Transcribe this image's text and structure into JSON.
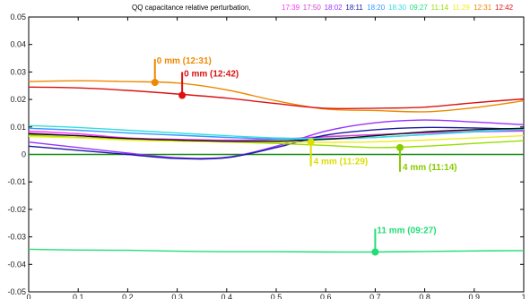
{
  "chart_data": {
    "type": "line",
    "title": "QQ capacitance relative perturbation,",
    "legend_placement": "top",
    "grid": false,
    "xlim": [
      0,
      1
    ],
    "ylim": [
      -0.05,
      0.05
    ],
    "xticks": [
      0,
      0.1,
      0.2,
      0.3,
      0.4,
      0.5,
      0.6,
      0.7,
      0.8,
      0.9,
      1
    ],
    "xtick_labels": [
      "0",
      "0.1",
      "0.2",
      "0.3",
      "0.4",
      "0.5",
      "0.6",
      "0.7",
      "0.8",
      "0.9",
      "1"
    ],
    "yticks": [
      0.05,
      0.04,
      0.03,
      0.02,
      0.01,
      0,
      -0.01,
      -0.02,
      -0.03,
      -0.04,
      -0.05
    ],
    "ytick_labels": [
      "0.05",
      "0.04",
      "0.03",
      "0.02",
      "0.01",
      "0",
      "-0.01",
      "-0.02",
      "-0.03",
      "-0.04",
      "-0.05"
    ],
    "x": [
      0,
      0.1,
      0.2,
      0.3,
      0.4,
      0.5,
      0.6,
      0.7,
      0.8,
      0.9,
      1
    ],
    "series": [
      {
        "name": "17:39",
        "color": "#ff33ff",
        "values": [
          0.0085,
          0.0075,
          0.006,
          0.0055,
          0.0052,
          0.0055,
          0.0065,
          0.0072,
          0.0078,
          0.0082,
          0.0085
        ]
      },
      {
        "name": "17:50",
        "color": "#cc44cc",
        "values": [
          0.0078,
          0.0068,
          0.0056,
          0.0052,
          0.005,
          0.0054,
          0.0064,
          0.0072,
          0.0079,
          0.0084,
          0.0087
        ]
      },
      {
        "name": "18:02",
        "color": "#9933ff",
        "values": [
          0.0045,
          0.0025,
          0.0005,
          -0.0012,
          -0.001,
          0.003,
          0.0085,
          0.0115,
          0.0125,
          0.0118,
          0.0108
        ]
      },
      {
        "name": "18:11",
        "color": "#1a1aa0",
        "values": [
          0.003,
          0.0015,
          0.0,
          -0.0015,
          -0.0012,
          0.0025,
          0.007,
          0.009,
          0.0098,
          0.0096,
          0.0092
        ]
      },
      {
        "name": "18:20",
        "color": "#3399ff",
        "values": [
          0.0095,
          0.0088,
          0.0078,
          0.007,
          0.0062,
          0.0056,
          0.0056,
          0.0062,
          0.0072,
          0.0082,
          0.009
        ]
      },
      {
        "name": "18:30",
        "color": "#33dddd",
        "values": [
          0.0105,
          0.0098,
          0.0088,
          0.0078,
          0.0068,
          0.006,
          0.0058,
          0.0062,
          0.0072,
          0.0083,
          0.0092
        ]
      },
      {
        "name": "09:27",
        "color": "#22dd77",
        "values": [
          -0.0345,
          -0.0348,
          -0.0349,
          -0.0352,
          -0.0354,
          -0.0354,
          -0.0355,
          -0.0355,
          -0.0353,
          -0.0351,
          -0.035
        ]
      },
      {
        "name": "11:14",
        "color": "#99dd00",
        "values": [
          0.007,
          0.0062,
          0.0055,
          0.005,
          0.0045,
          0.004,
          0.0033,
          0.0025,
          0.003,
          0.004,
          0.005
        ]
      },
      {
        "name": "11:29",
        "color": "#eeee22",
        "values": [
          0.0065,
          0.006,
          0.0052,
          0.0048,
          0.0045,
          0.0045,
          0.0044,
          0.0046,
          0.0052,
          0.006,
          0.0068
        ]
      },
      {
        "name": "12:31",
        "color": "#ee8800",
        "values": [
          0.0265,
          0.0268,
          0.0265,
          0.026,
          0.0235,
          0.0195,
          0.0165,
          0.016,
          0.0155,
          0.017,
          0.0195
        ]
      },
      {
        "name": "12:42",
        "color": "#dd1111",
        "values": [
          0.0245,
          0.0242,
          0.0233,
          0.022,
          0.0205,
          0.0185,
          0.0168,
          0.0168,
          0.0172,
          0.0188,
          0.0202
        ]
      },
      {
        "name": "",
        "color": "#111111",
        "values": [
          0.0075,
          0.0068,
          0.0058,
          0.0052,
          0.0048,
          0.0048,
          0.0055,
          0.0068,
          0.0082,
          0.009,
          0.0095
        ]
      }
    ],
    "baseline": {
      "y": 0,
      "color": "#118811"
    },
    "annotations": [
      {
        "label": "0 mm (12:31)",
        "color": "#ee8800",
        "x": 0.255,
        "y": 0.0262,
        "text_above": true
      },
      {
        "label": "0 mm (12:42)",
        "color": "#dd1111",
        "x": 0.31,
        "y": 0.0215,
        "text_above": true
      },
      {
        "label": "4 mm (11:29)",
        "color": "#dddd00",
        "x": 0.57,
        "y": 0.0045,
        "text_above": false
      },
      {
        "label": "4 mm (11:14)",
        "color": "#88cc00",
        "x": 0.75,
        "y": 0.0025,
        "text_above": false
      },
      {
        "label": "11 mm (09:27)",
        "color": "#22dd77",
        "x": 0.7,
        "y": -0.0355,
        "text_above": true
      }
    ]
  }
}
